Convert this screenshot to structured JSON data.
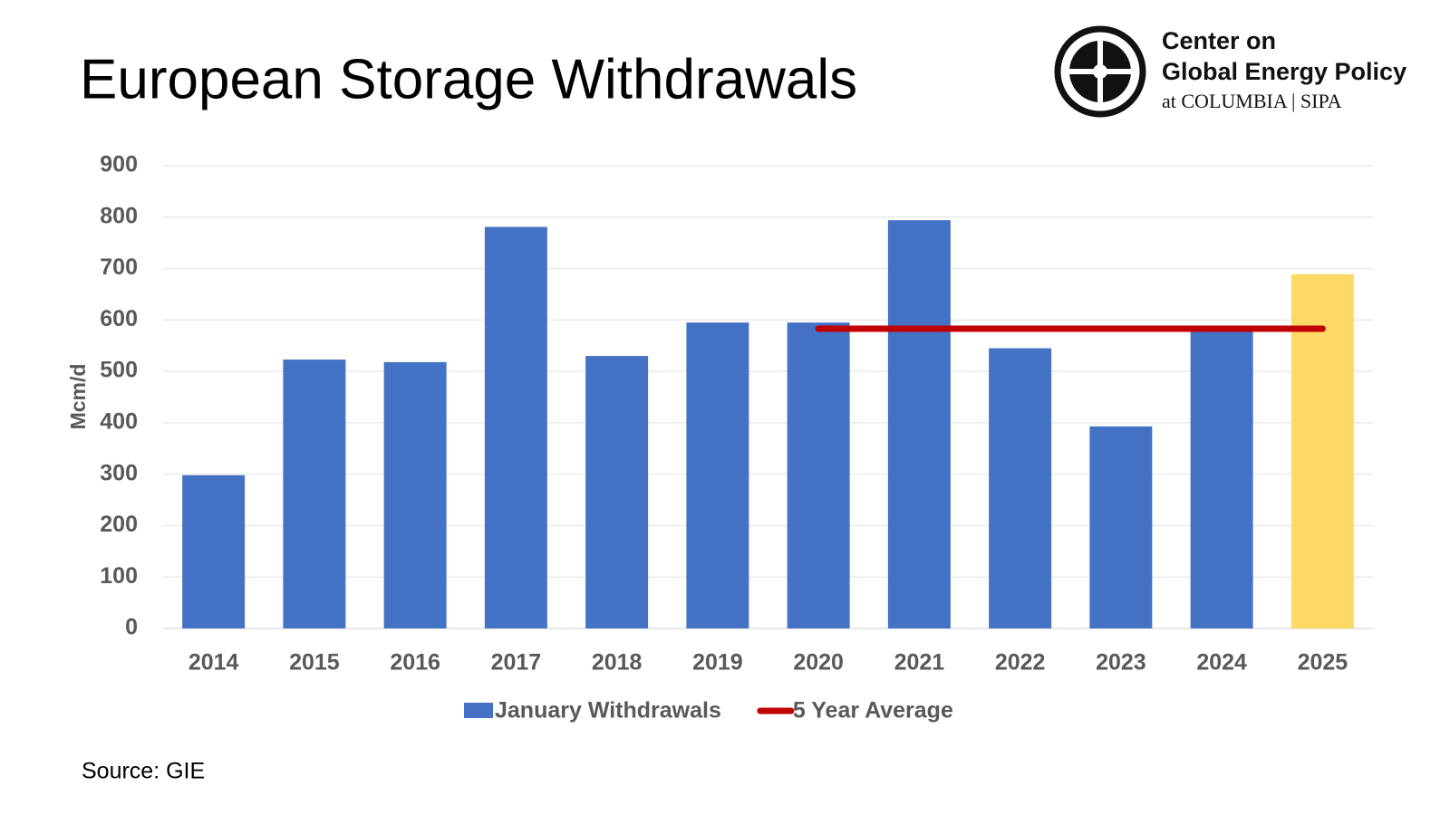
{
  "chart_data": {
    "type": "bar",
    "title": "European Storage Withdrawals",
    "y_label": "Mcm/d",
    "source": "Source: GIE",
    "logo": {
      "line1": "Center on",
      "line2": "Global Energy Policy",
      "line3": "at COLUMBIA | SIPA"
    },
    "categories": [
      "2014",
      "2015",
      "2016",
      "2017",
      "2018",
      "2019",
      "2020",
      "2021",
      "2022",
      "2023",
      "2024",
      "2025"
    ],
    "series": [
      {
        "name": "January Withdrawals",
        "type": "bar",
        "color": "#4472c4",
        "bar_colors": [
          "#4472c4",
          "#4472c4",
          "#4472c4",
          "#4472c4",
          "#4472c4",
          "#4472c4",
          "#4472c4",
          "#4472c4",
          "#4472c4",
          "#4472c4",
          "#4472c4",
          "#ffd966"
        ],
        "values": [
          298,
          523,
          518,
          781,
          530,
          595,
          595,
          794,
          545,
          393,
          585,
          689
        ]
      },
      {
        "name": "5 Year Average",
        "type": "line",
        "color": "#c00000",
        "values": [
          null,
          null,
          null,
          null,
          null,
          null,
          583,
          583,
          583,
          583,
          583,
          583
        ]
      }
    ],
    "ylim": [
      0,
      900
    ],
    "yticks": [
      0,
      100,
      200,
      300,
      400,
      500,
      600,
      700,
      800,
      900
    ],
    "grid": true,
    "legend": "bottom"
  }
}
